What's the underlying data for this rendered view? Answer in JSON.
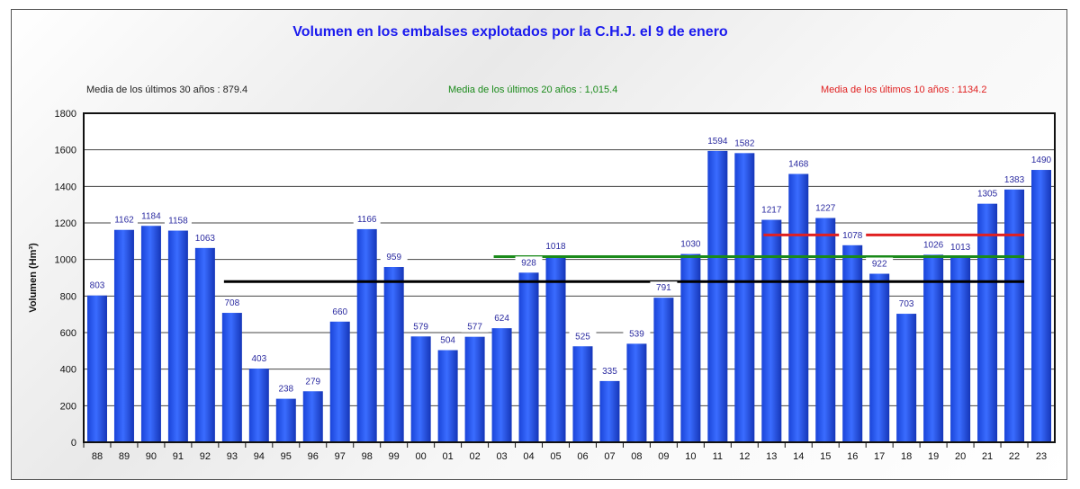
{
  "chart_data": {
    "type": "bar",
    "title": "Volumen en los embalses explotados por la C.H.J. el 9 de enero",
    "ylabel": "Volumen (Hm³)",
    "xlabel": "",
    "ylim": [
      0,
      1800
    ],
    "yticks": [
      0,
      200,
      400,
      600,
      800,
      1000,
      1200,
      1400,
      1600,
      1800
    ],
    "grid": true,
    "categories": [
      "88",
      "89",
      "90",
      "91",
      "92",
      "93",
      "94",
      "95",
      "96",
      "97",
      "98",
      "99",
      "00",
      "01",
      "02",
      "03",
      "04",
      "05",
      "06",
      "07",
      "08",
      "09",
      "10",
      "11",
      "12",
      "13",
      "14",
      "15",
      "16",
      "17",
      "18",
      "19",
      "20",
      "21",
      "22",
      "23"
    ],
    "values": [
      803,
      1162,
      1184,
      1158,
      1063,
      708,
      403,
      238,
      279,
      660,
      1166,
      959,
      579,
      504,
      577,
      624,
      928,
      1018,
      525,
      335,
      539,
      791,
      1030,
      1594,
      1582,
      1217,
      1468,
      1227,
      1078,
      922,
      703,
      1026,
      1013,
      1305,
      1383,
      1490
    ],
    "data_labels": [
      "803",
      "1162",
      "1184",
      "1158",
      "1063",
      "708",
      "403",
      "238",
      "279",
      "660",
      "1166",
      "959",
      "579",
      "504",
      "577",
      "624",
      "928",
      "1018",
      "525",
      "335",
      "539",
      "791",
      "1030",
      "1594",
      "1582",
      "1217",
      "1468",
      "1227",
      "1078",
      "922",
      "703",
      "1026",
      "1013",
      "1305",
      "1383",
      "1490"
    ],
    "bar_color": "#2255ee",
    "reference_lines": [
      {
        "label": "Media de los últimos 30 años : 879.4",
        "value": 879.4,
        "color": "#000000",
        "from": "93",
        "to": "22"
      },
      {
        "label": "Media de los últimos 20 años : 1,015.4",
        "value": 1015.4,
        "color": "#1a8a1a",
        "from": "03",
        "to": "22"
      },
      {
        "label": "Media de los últimos 10 años : 1134.2",
        "value": 1134.2,
        "color": "#e02020",
        "from": "13",
        "to": "22"
      }
    ],
    "title_color": "#1a1aee",
    "label_color": "#2a2aa0"
  }
}
